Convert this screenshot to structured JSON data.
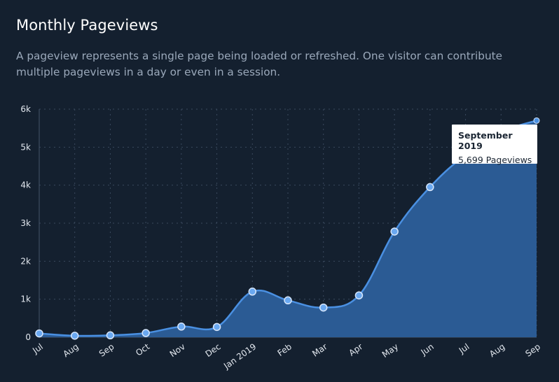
{
  "header": {
    "title": "Monthly Pageviews",
    "subtitle": "A pageview represents a single page being loaded or refreshed. One visitor can contribute multiple pageviews in a day or even in a session."
  },
  "tooltip": {
    "title": "September 2019",
    "value": "5,699 Pageviews"
  },
  "colors": {
    "background": "#14202f",
    "line": "#4a90e2",
    "area": "#2b5b94",
    "point_fill": "#6aa8f0",
    "point_stroke": "#d6e6fb"
  },
  "chart_data": {
    "type": "area",
    "title": "Monthly Pageviews",
    "categories": [
      "Jul",
      "Aug",
      "Sep",
      "Oct",
      "Nov",
      "Dec",
      "Jan 2019",
      "Feb",
      "Mar",
      "Apr",
      "May",
      "Jun",
      "Jul",
      "Aug",
      "Sep"
    ],
    "series": [
      {
        "values": [
          100,
          40,
          50,
          110,
          280,
          270,
          1200,
          970,
          780,
          1100,
          2780,
          3950,
          4800,
          5400,
          5699
        ]
      }
    ],
    "markers_shown": [
      true,
      true,
      true,
      true,
      true,
      true,
      true,
      true,
      true,
      true,
      true,
      true,
      false,
      false,
      true
    ],
    "y_ticks": [
      "0",
      "1k",
      "2k",
      "3k",
      "4k",
      "5k",
      "6k"
    ],
    "ylim": [
      0,
      6000
    ],
    "grid": true,
    "xlabel": "",
    "ylabel": ""
  }
}
